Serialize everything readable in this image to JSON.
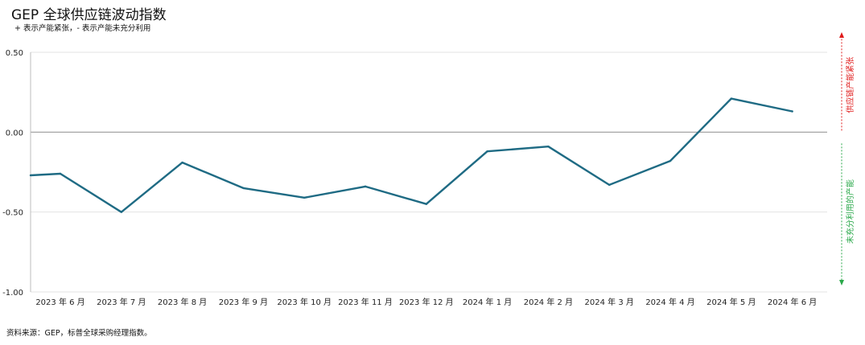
{
  "title": "GEP 全球供应链波动指数",
  "subtitle": "+ 表示产能紧张，- 表示产能未充分利用",
  "source": "资料来源：GEP，标普全球采购经理指数。",
  "colors": {
    "line": "#1f6b84",
    "grid": "#e3e3e3",
    "zero_line": "#9a9a9a",
    "axis": "#bdbdbd",
    "tight": "#e01b1b",
    "slack": "#2aa84a"
  },
  "annotations": {
    "tight": "供应链产能紧张",
    "slack": "未充分利用的产能"
  },
  "chart_data": {
    "type": "line",
    "title": "GEP 全球供应链波动指数",
    "subtitle": "+ 表示产能紧张，- 表示产能未充分利用",
    "xlabel": "",
    "ylabel": "",
    "ylim": [
      -1.0,
      0.5
    ],
    "yticks": [
      0.5,
      0.0,
      -0.5,
      -1.0
    ],
    "ytick_labels": [
      "0.50",
      "0.00",
      "-0.50",
      "-1.00"
    ],
    "categories": [
      "2023 年 6 月",
      "2023 年 7 月",
      "2023 年 8 月",
      "2023 年 9 月",
      "2023 年 10 月",
      "2023 年 11 月",
      "2023 年 12 月",
      "2024 年 1 月",
      "2024 年 2 月",
      "2024 年 3 月",
      "2024 年 4 月",
      "2024 年 5 月",
      "2024 年 6 月"
    ],
    "series": [
      {
        "start_value": -0.27,
        "values": [
          -0.26,
          -0.5,
          -0.19,
          -0.35,
          -0.41,
          -0.34,
          -0.45,
          -0.12,
          -0.09,
          -0.33,
          -0.18,
          0.21,
          0.13
        ]
      }
    ],
    "grid": true,
    "legend": "none"
  }
}
